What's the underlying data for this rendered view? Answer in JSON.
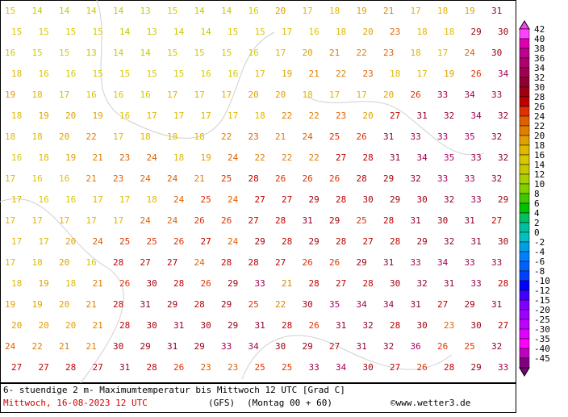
{
  "map": {
    "values": [
      [
        15,
        14,
        14,
        14,
        14,
        13,
        15,
        14,
        14,
        16,
        20,
        17,
        18,
        19,
        21,
        17,
        18,
        19,
        31
      ],
      [
        15,
        15,
        15,
        15,
        14,
        13,
        14,
        14,
        15,
        15,
        17,
        16,
        18,
        20,
        23,
        18,
        18,
        29,
        30
      ],
      [
        16,
        15,
        15,
        13,
        14,
        14,
        15,
        15,
        15,
        16,
        17,
        20,
        21,
        22,
        23,
        18,
        17,
        24,
        30
      ],
      [
        18,
        16,
        16,
        15,
        15,
        15,
        15,
        16,
        16,
        17,
        19,
        21,
        22,
        23,
        18,
        17,
        19,
        26,
        34
      ],
      [
        19,
        18,
        17,
        16,
        16,
        16,
        17,
        17,
        17,
        20,
        20,
        18,
        17,
        17,
        20,
        26,
        33,
        34,
        33
      ],
      [
        18,
        19,
        20,
        19,
        16,
        17,
        17,
        17,
        17,
        18,
        22,
        22,
        23,
        20,
        27,
        31,
        32,
        34,
        32
      ],
      [
        18,
        18,
        20,
        22,
        17,
        18,
        18,
        18,
        22,
        23,
        21,
        24,
        25,
        26,
        31,
        33,
        33,
        35,
        32
      ],
      [
        16,
        18,
        19,
        21,
        23,
        24,
        18,
        19,
        24,
        22,
        22,
        22,
        27,
        28,
        31,
        34,
        35,
        33,
        32
      ],
      [
        17,
        16,
        16,
        21,
        23,
        24,
        24,
        21,
        25,
        28,
        26,
        26,
        26,
        28,
        29,
        32,
        33,
        33,
        32
      ],
      [
        17,
        16,
        16,
        17,
        17,
        18,
        24,
        25,
        24,
        27,
        27,
        29,
        28,
        30,
        29,
        30,
        32,
        33,
        29
      ],
      [
        17,
        17,
        17,
        17,
        17,
        24,
        24,
        26,
        26,
        27,
        28,
        31,
        29,
        25,
        28,
        31,
        30,
        31,
        27
      ],
      [
        17,
        17,
        20,
        24,
        25,
        25,
        26,
        27,
        24,
        29,
        28,
        29,
        28,
        27,
        28,
        29,
        32,
        31,
        30
      ],
      [
        17,
        18,
        20,
        16,
        28,
        27,
        27,
        24,
        28,
        28,
        27,
        26,
        26,
        29,
        31,
        33,
        34,
        33,
        33
      ],
      [
        18,
        19,
        18,
        21,
        26,
        30,
        28,
        26,
        29,
        33,
        21,
        28,
        27,
        28,
        30,
        32,
        31,
        33,
        28
      ],
      [
        19,
        19,
        20,
        21,
        28,
        31,
        29,
        28,
        29,
        25,
        22,
        30,
        35,
        34,
        34,
        31,
        27,
        29,
        31
      ],
      [
        20,
        20,
        20,
        21,
        28,
        30,
        31,
        30,
        29,
        31,
        28,
        26,
        31,
        32,
        28,
        30,
        23,
        30,
        27
      ],
      [
        24,
        22,
        21,
        21,
        30,
        29,
        31,
        29,
        33,
        34,
        30,
        29,
        27,
        31,
        32,
        36,
        26,
        25,
        32
      ],
      [
        27,
        27,
        28,
        27,
        31,
        28,
        26,
        23,
        23,
        25,
        25,
        33,
        34,
        30,
        27,
        26,
        28,
        29,
        33
      ]
    ]
  },
  "colorbar": [
    {
      "value": 42,
      "color": "#ff40ff"
    },
    {
      "value": 40,
      "color": "#e000b0"
    },
    {
      "value": 38,
      "color": "#c00090"
    },
    {
      "value": 36,
      "color": "#b00070"
    },
    {
      "value": 34,
      "color": "#a00050"
    },
    {
      "value": 32,
      "color": "#900030"
    },
    {
      "value": 30,
      "color": "#a00010"
    },
    {
      "value": 28,
      "color": "#c00000"
    },
    {
      "value": 26,
      "color": "#e03000"
    },
    {
      "value": 24,
      "color": "#e06000"
    },
    {
      "value": 22,
      "color": "#e08000"
    },
    {
      "value": 20,
      "color": "#e0a000"
    },
    {
      "value": 18,
      "color": "#e0b800"
    },
    {
      "value": 16,
      "color": "#d8c800"
    },
    {
      "value": 14,
      "color": "#c8c800"
    },
    {
      "value": 12,
      "color": "#a8d000"
    },
    {
      "value": 10,
      "color": "#80d000"
    },
    {
      "value": 8,
      "color": "#40c800"
    },
    {
      "value": 6,
      "color": "#00c000"
    },
    {
      "value": 4,
      "color": "#00c060"
    },
    {
      "value": 2,
      "color": "#00c0a0"
    },
    {
      "value": 0,
      "color": "#00c0c0"
    },
    {
      "value": -2,
      "color": "#00a0e0"
    },
    {
      "value": -4,
      "color": "#0080ff"
    },
    {
      "value": -6,
      "color": "#0060ff"
    },
    {
      "value": -8,
      "color": "#0040ff"
    },
    {
      "value": -10,
      "color": "#0000ff"
    },
    {
      "value": -12,
      "color": "#4000ff"
    },
    {
      "value": -15,
      "color": "#8000ff"
    },
    {
      "value": -20,
      "color": "#a000ff"
    },
    {
      "value": -25,
      "color": "#c000ff"
    },
    {
      "value": -30,
      "color": "#e000ff"
    },
    {
      "value": -35,
      "color": "#ff00ff"
    },
    {
      "value": -40,
      "color": "#c000c0"
    },
    {
      "value": -45,
      "color": "#800080"
    }
  ],
  "footer": {
    "description": "6- stuendige 2 m- Maximumtemperatur bis Mittwoch 12 UTC [Grad C]",
    "date": "Mittwoch, 16-08-2023  12 UTC",
    "model": "(GFS)",
    "run": "(Montag 00 + 60)",
    "credit": "©www.wetter3.de"
  }
}
